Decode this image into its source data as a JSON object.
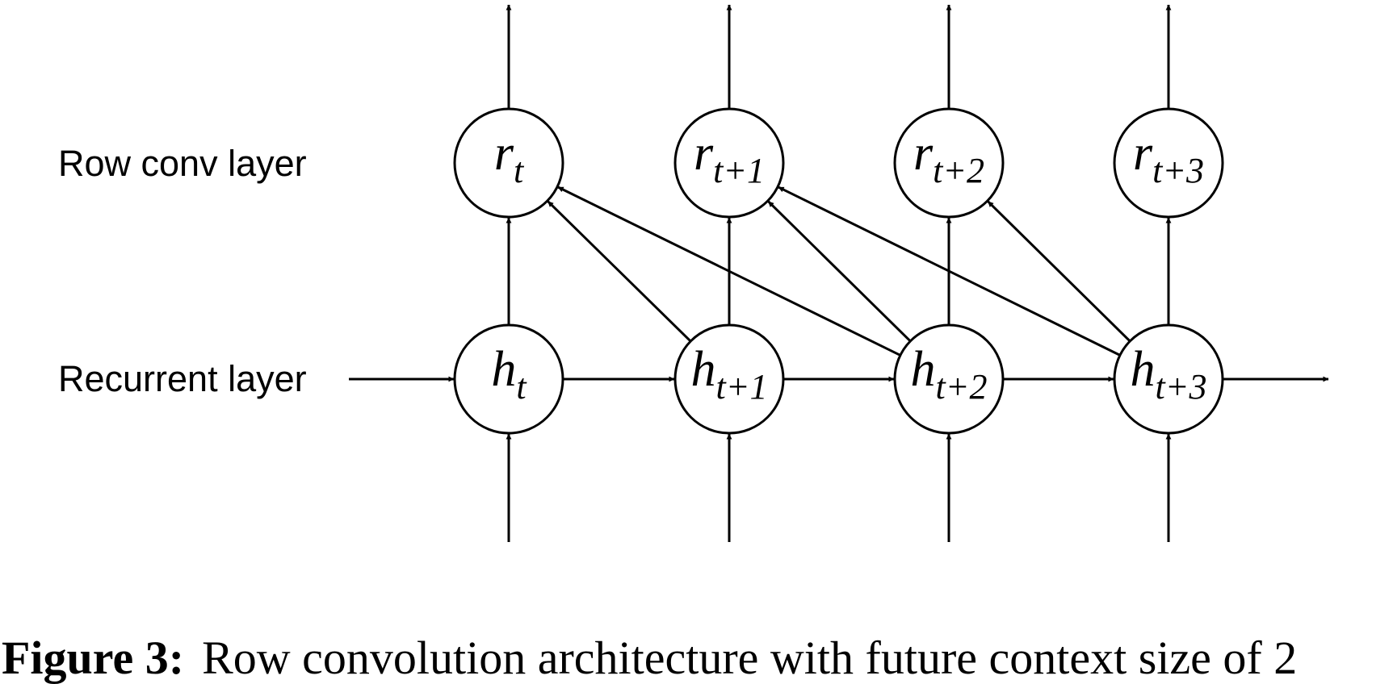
{
  "layers": {
    "row_conv": "Row conv layer",
    "recurrent": "Recurrent layer"
  },
  "row_nodes": [
    {
      "symbol": "r",
      "subscript": "t"
    },
    {
      "symbol": "r",
      "subscript": "t+1"
    },
    {
      "symbol": "r",
      "subscript": "t+2"
    },
    {
      "symbol": "r",
      "subscript": "t+3"
    }
  ],
  "hidden_nodes": [
    {
      "symbol": "h",
      "subscript": "t"
    },
    {
      "symbol": "h",
      "subscript": "t+1"
    },
    {
      "symbol": "h",
      "subscript": "t+2"
    },
    {
      "symbol": "h",
      "subscript": "t+3"
    }
  ],
  "caption": {
    "label": "Figure 3:",
    "text": "Row convolution architecture with future context size of 2"
  }
}
